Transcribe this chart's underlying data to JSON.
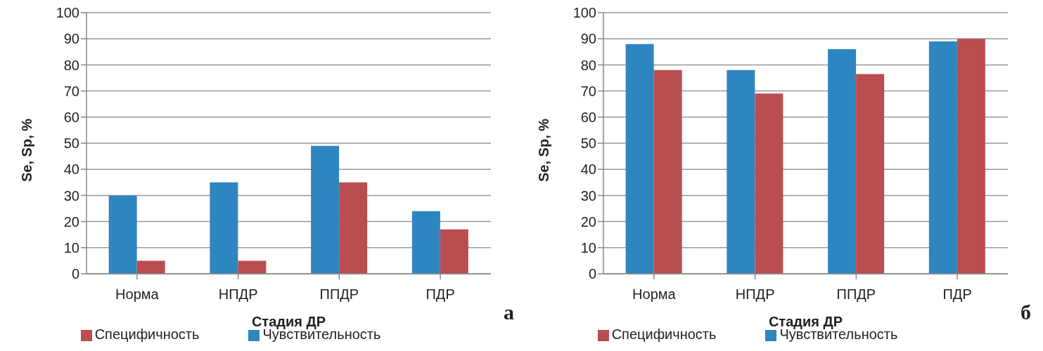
{
  "chart_data": [
    {
      "type": "bar",
      "categories": [
        "Норма",
        "НПДР",
        "ППДР",
        "ПДР"
      ],
      "xlabel": "Стадия ДР",
      "ylabel": "Se, Sp, %",
      "ylim": [
        0,
        100
      ],
      "yticks": [
        0,
        10,
        20,
        30,
        40,
        50,
        60,
        70,
        80,
        90,
        100
      ],
      "grid": "y",
      "legend": "bottom",
      "annotations": [
        "а"
      ],
      "series": [
        {
          "name": "Чувствительность",
          "color": "#2e86c1",
          "values": [
            30,
            35,
            49,
            24
          ]
        },
        {
          "name": "Специфичность",
          "color": "#b94d50",
          "values": [
            5,
            5,
            35,
            17
          ]
        }
      ]
    },
    {
      "type": "bar",
      "categories": [
        "Норма",
        "НПДР",
        "ППДР",
        "ПДР"
      ],
      "xlabel": "Стадия ДР",
      "ylabel": "Se, Sp, %",
      "ylim": [
        0,
        100
      ],
      "yticks": [
        0,
        10,
        20,
        30,
        40,
        50,
        60,
        70,
        80,
        90,
        100
      ],
      "grid": "y",
      "legend": "bottom",
      "annotations": [
        "б"
      ],
      "series": [
        {
          "name": "Чувствительность",
          "color": "#2e86c1",
          "values": [
            88,
            78,
            86,
            89
          ]
        },
        {
          "name": "Специфичность",
          "color": "#b94d50",
          "values": [
            78,
            69,
            76.5,
            90
          ]
        }
      ]
    }
  ]
}
